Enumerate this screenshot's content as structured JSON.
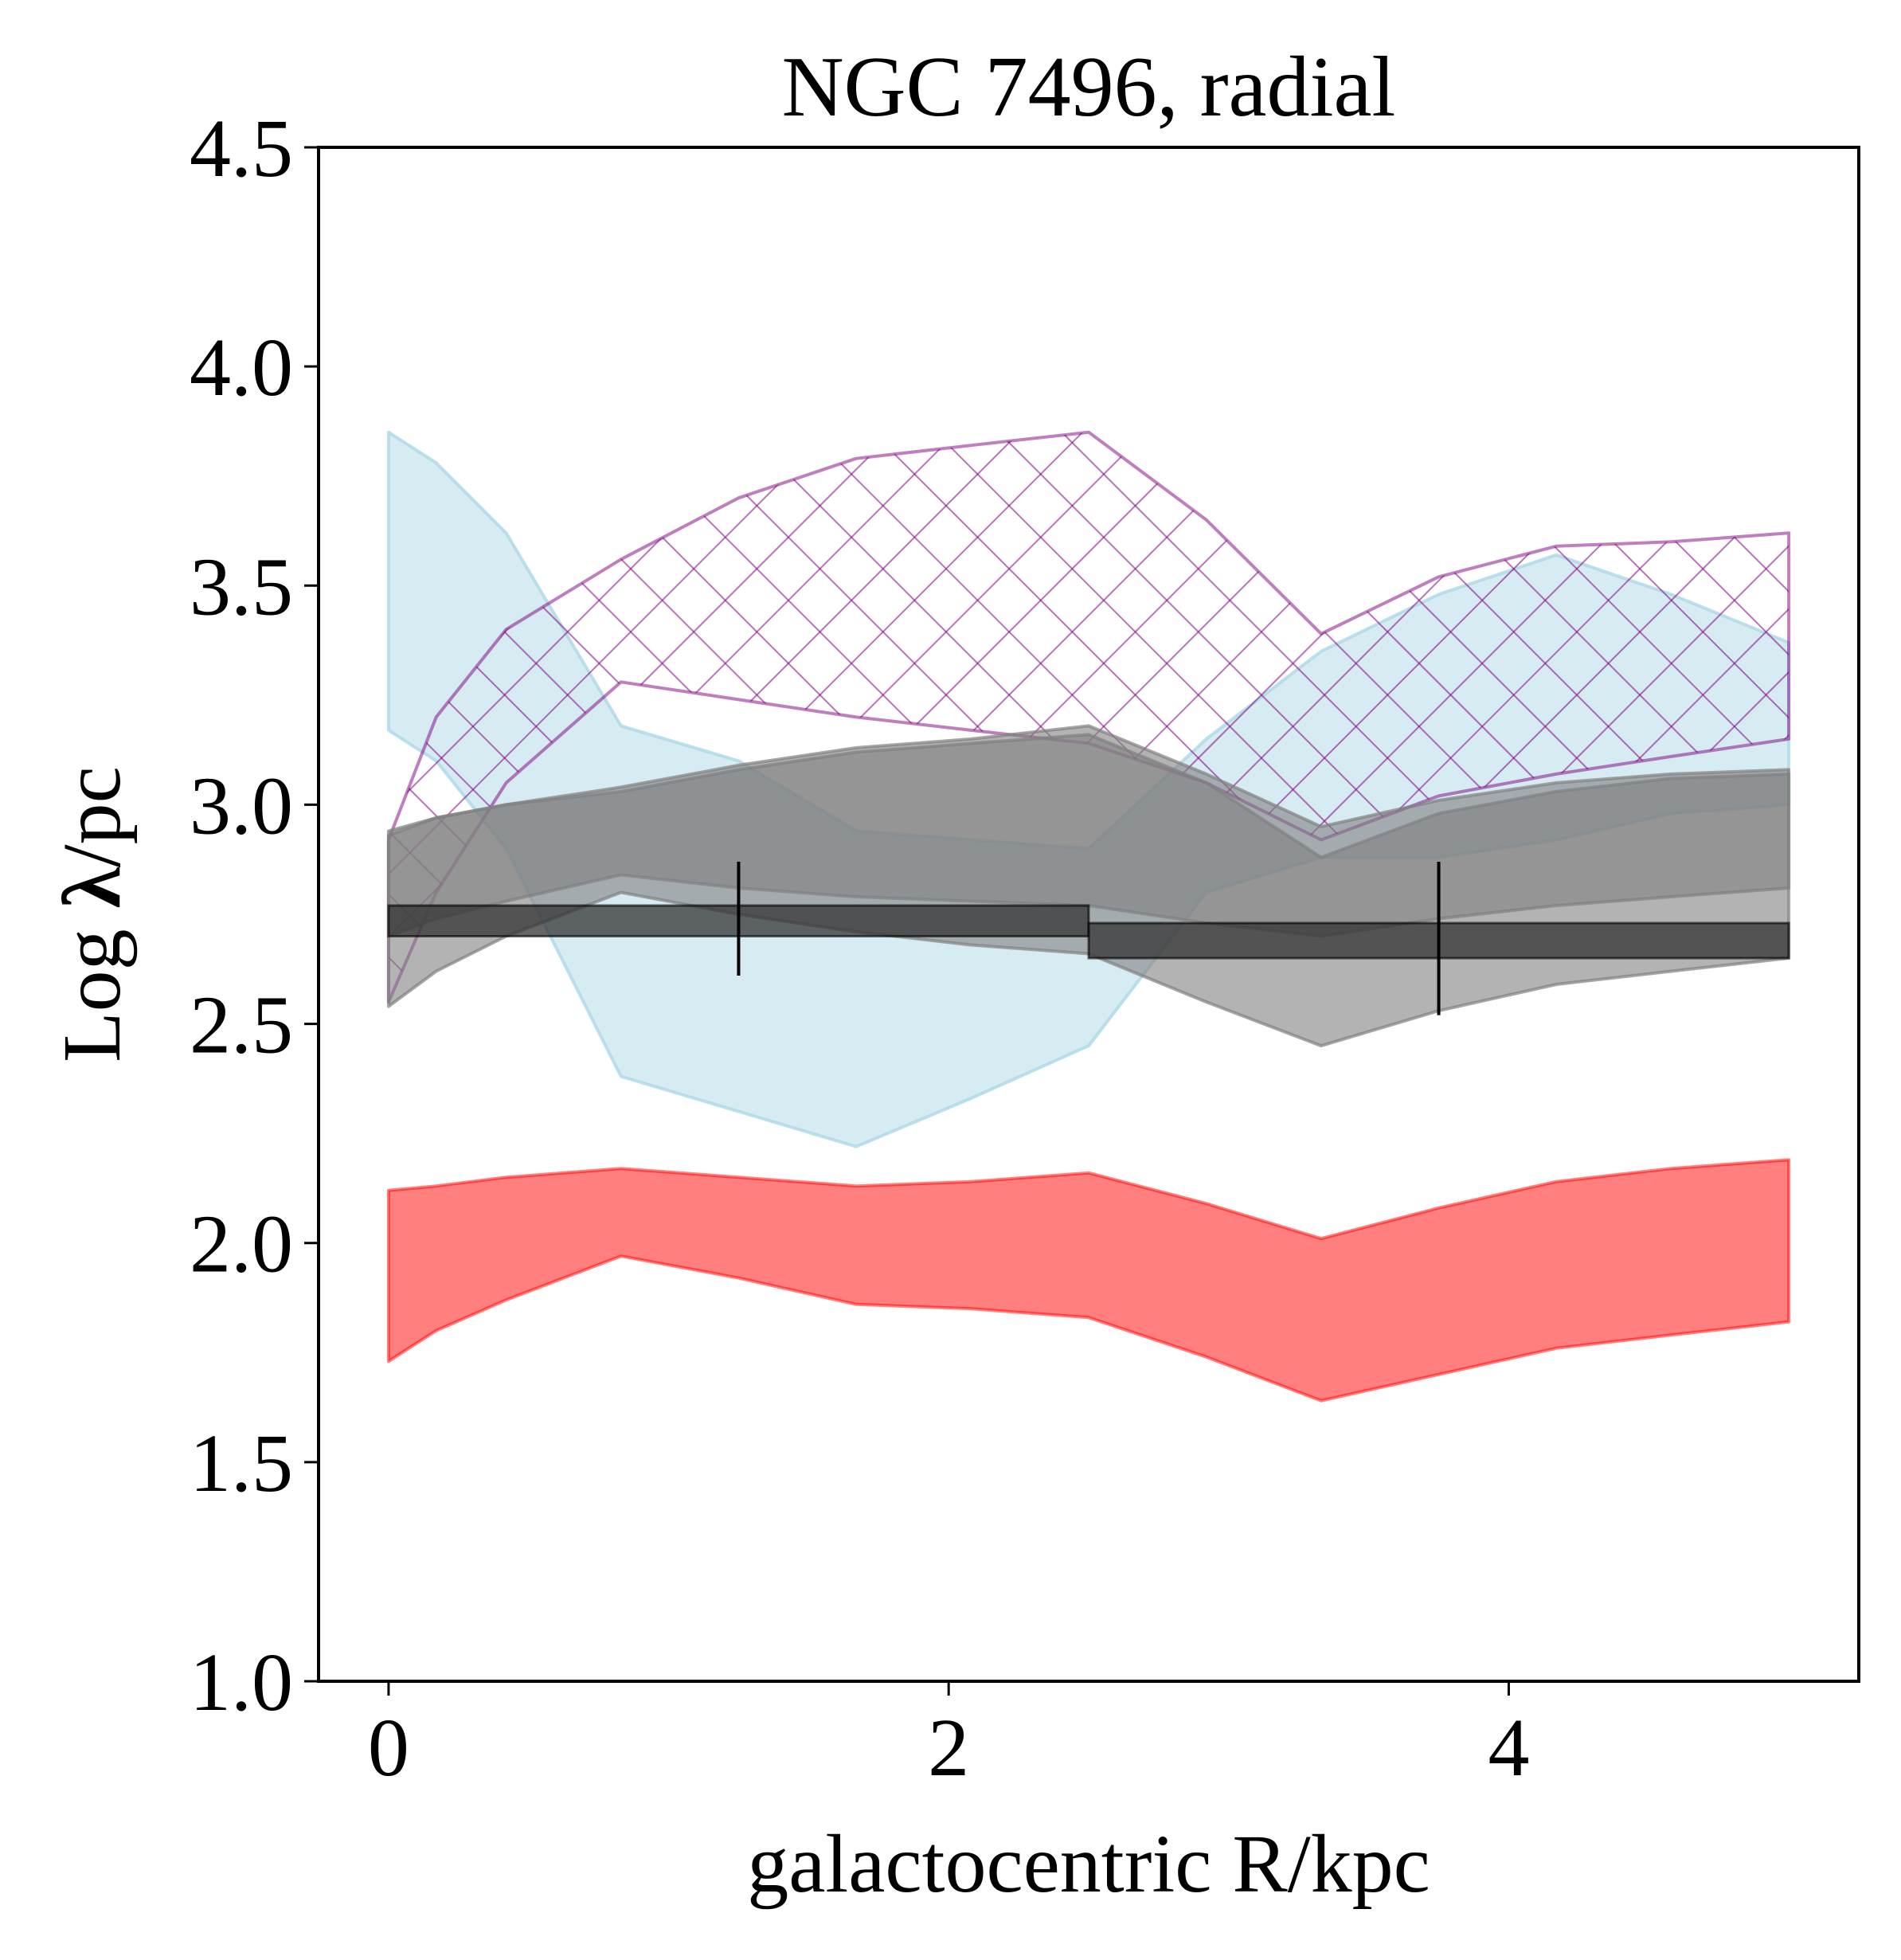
{
  "chart_data": {
    "type": "area",
    "title": "NGC 7496, radial",
    "xlabel": "galactocentric R/kpc",
    "ylabel_prefix": "Log ",
    "ylabel_symbol": "λ",
    "ylabel_suffix": "/pc",
    "xlim": [
      -0.25,
      5.25
    ],
    "ylim": [
      1.0,
      4.5
    ],
    "xticks": [
      0,
      2,
      4
    ],
    "xtick_labels": [
      "0",
      "2",
      "4"
    ],
    "yticks": [
      1.0,
      1.5,
      2.0,
      2.5,
      3.0,
      3.5,
      4.0,
      4.5
    ],
    "ytick_labels": [
      "1.0",
      "1.5",
      "2.0",
      "2.5",
      "3.0",
      "3.5",
      "4.0",
      "4.5"
    ],
    "grid": false,
    "colors": {
      "red": "#ff0000",
      "lightblue": "#add8e6",
      "purple": "#800080",
      "gray": "#808080",
      "dark": "#333333"
    },
    "bands": [
      {
        "style": "red",
        "x": [
          0,
          0.17,
          0.42,
          0.83,
          1.25,
          1.67,
          2.08,
          2.5,
          2.92,
          3.33,
          3.75,
          4.17,
          4.58,
          5.0
        ],
        "lower": [
          1.73,
          1.8,
          1.87,
          1.97,
          1.92,
          1.86,
          1.85,
          1.83,
          1.74,
          1.64,
          1.7,
          1.76,
          1.79,
          1.82
        ],
        "upper": [
          2.12,
          2.13,
          2.15,
          2.17,
          2.15,
          2.13,
          2.14,
          2.16,
          2.09,
          2.01,
          2.08,
          2.14,
          2.17,
          2.19
        ]
      },
      {
        "style": "lightblue",
        "x": [
          0,
          0.17,
          0.42,
          0.83,
          1.25,
          1.67,
          2.08,
          2.5,
          2.92,
          3.33,
          3.75,
          4.17,
          4.58,
          5.0
        ],
        "lower": [
          3.17,
          3.1,
          2.9,
          2.38,
          2.3,
          2.22,
          2.33,
          2.45,
          2.8,
          2.88,
          2.88,
          2.92,
          2.98,
          3.0
        ],
        "upper": [
          3.85,
          3.78,
          3.62,
          3.18,
          3.1,
          2.94,
          2.92,
          2.9,
          3.15,
          3.35,
          3.48,
          3.57,
          3.48,
          3.37
        ]
      },
      {
        "style": "purple",
        "x": [
          0,
          0.17,
          0.42,
          0.83,
          1.25,
          1.67,
          2.08,
          2.5,
          2.92,
          3.33,
          3.75,
          4.17,
          4.58,
          5.0
        ],
        "lower": [
          2.55,
          2.8,
          3.05,
          3.28,
          3.24,
          3.2,
          3.17,
          3.14,
          3.05,
          2.92,
          3.02,
          3.07,
          3.11,
          3.15
        ],
        "upper": [
          2.92,
          3.2,
          3.4,
          3.56,
          3.7,
          3.79,
          3.82,
          3.85,
          3.65,
          3.39,
          3.52,
          3.59,
          3.6,
          3.62
        ]
      },
      {
        "style": "gray",
        "x": [
          0,
          0.17,
          0.42,
          0.83,
          1.25,
          1.67,
          2.08,
          2.5,
          2.92,
          3.33,
          3.75,
          4.17,
          4.58,
          5.0
        ],
        "lower": [
          2.54,
          2.62,
          2.7,
          2.8,
          2.75,
          2.71,
          2.68,
          2.66,
          2.55,
          2.45,
          2.53,
          2.59,
          2.62,
          2.65
        ],
        "upper": [
          2.94,
          2.97,
          3.0,
          3.04,
          3.09,
          3.13,
          3.15,
          3.18,
          3.07,
          2.95,
          3.01,
          3.05,
          3.07,
          3.08
        ]
      },
      {
        "style": "gray",
        "x": [
          0,
          0.17,
          0.42,
          0.83,
          1.25,
          1.67,
          2.08,
          2.5,
          2.92,
          3.33,
          3.75,
          4.17,
          4.58,
          5.0
        ],
        "lower": [
          2.7,
          2.74,
          2.78,
          2.84,
          2.81,
          2.79,
          2.78,
          2.77,
          2.73,
          2.7,
          2.74,
          2.77,
          2.79,
          2.81
        ],
        "upper": [
          2.93,
          2.97,
          3.0,
          3.03,
          3.08,
          3.12,
          3.14,
          3.16,
          3.05,
          2.88,
          2.98,
          3.03,
          3.06,
          3.07
        ]
      }
    ],
    "bins": [
      {
        "x0": 0.0,
        "x1": 2.5,
        "lower": 2.7,
        "upper": 2.77,
        "center": 1.25,
        "err_lower": 2.61,
        "err_upper": 2.87
      },
      {
        "x0": 2.5,
        "x1": 5.0,
        "lower": 2.65,
        "upper": 2.73,
        "center": 3.75,
        "err_lower": 2.52,
        "err_upper": 2.87
      }
    ]
  }
}
